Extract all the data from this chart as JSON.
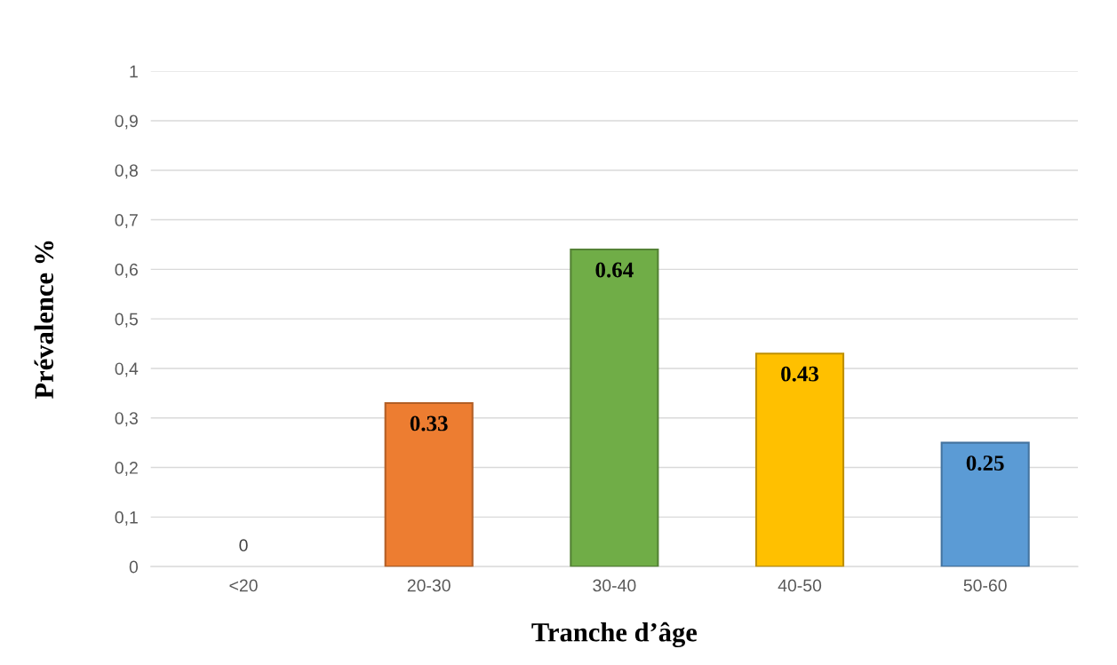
{
  "chart_data": {
    "type": "bar",
    "xlabel": "Tranche d’âge",
    "ylabel": "Prévalence %",
    "categories": [
      "<20",
      "20-30",
      "30-40",
      "40-50",
      "50-60"
    ],
    "values": [
      0,
      0.33,
      0.64,
      0.43,
      0.25
    ],
    "colors": [
      "#ed7d31",
      "#ed7d31",
      "#70ad47",
      "#ffc000",
      "#5b9bd5"
    ],
    "ylim": [
      0,
      1
    ],
    "yticks": [
      0,
      {
        "value": 0.1,
        "label": "0,1"
      },
      {
        "value": 0.2,
        "label": "0,2"
      },
      {
        "value": 0.3,
        "label": "0,3"
      },
      {
        "value": 0.4,
        "label": "0,4"
      },
      {
        "value": 0.5,
        "label": "0,5"
      },
      {
        "value": 0.6,
        "label": "0,6"
      },
      {
        "value": 0.7,
        "label": "0,7"
      },
      {
        "value": 0.8,
        "label": "0,8"
      },
      {
        "value": 0.9,
        "label": "0,9"
      },
      1
    ],
    "grid": "y",
    "data_labels": true
  }
}
